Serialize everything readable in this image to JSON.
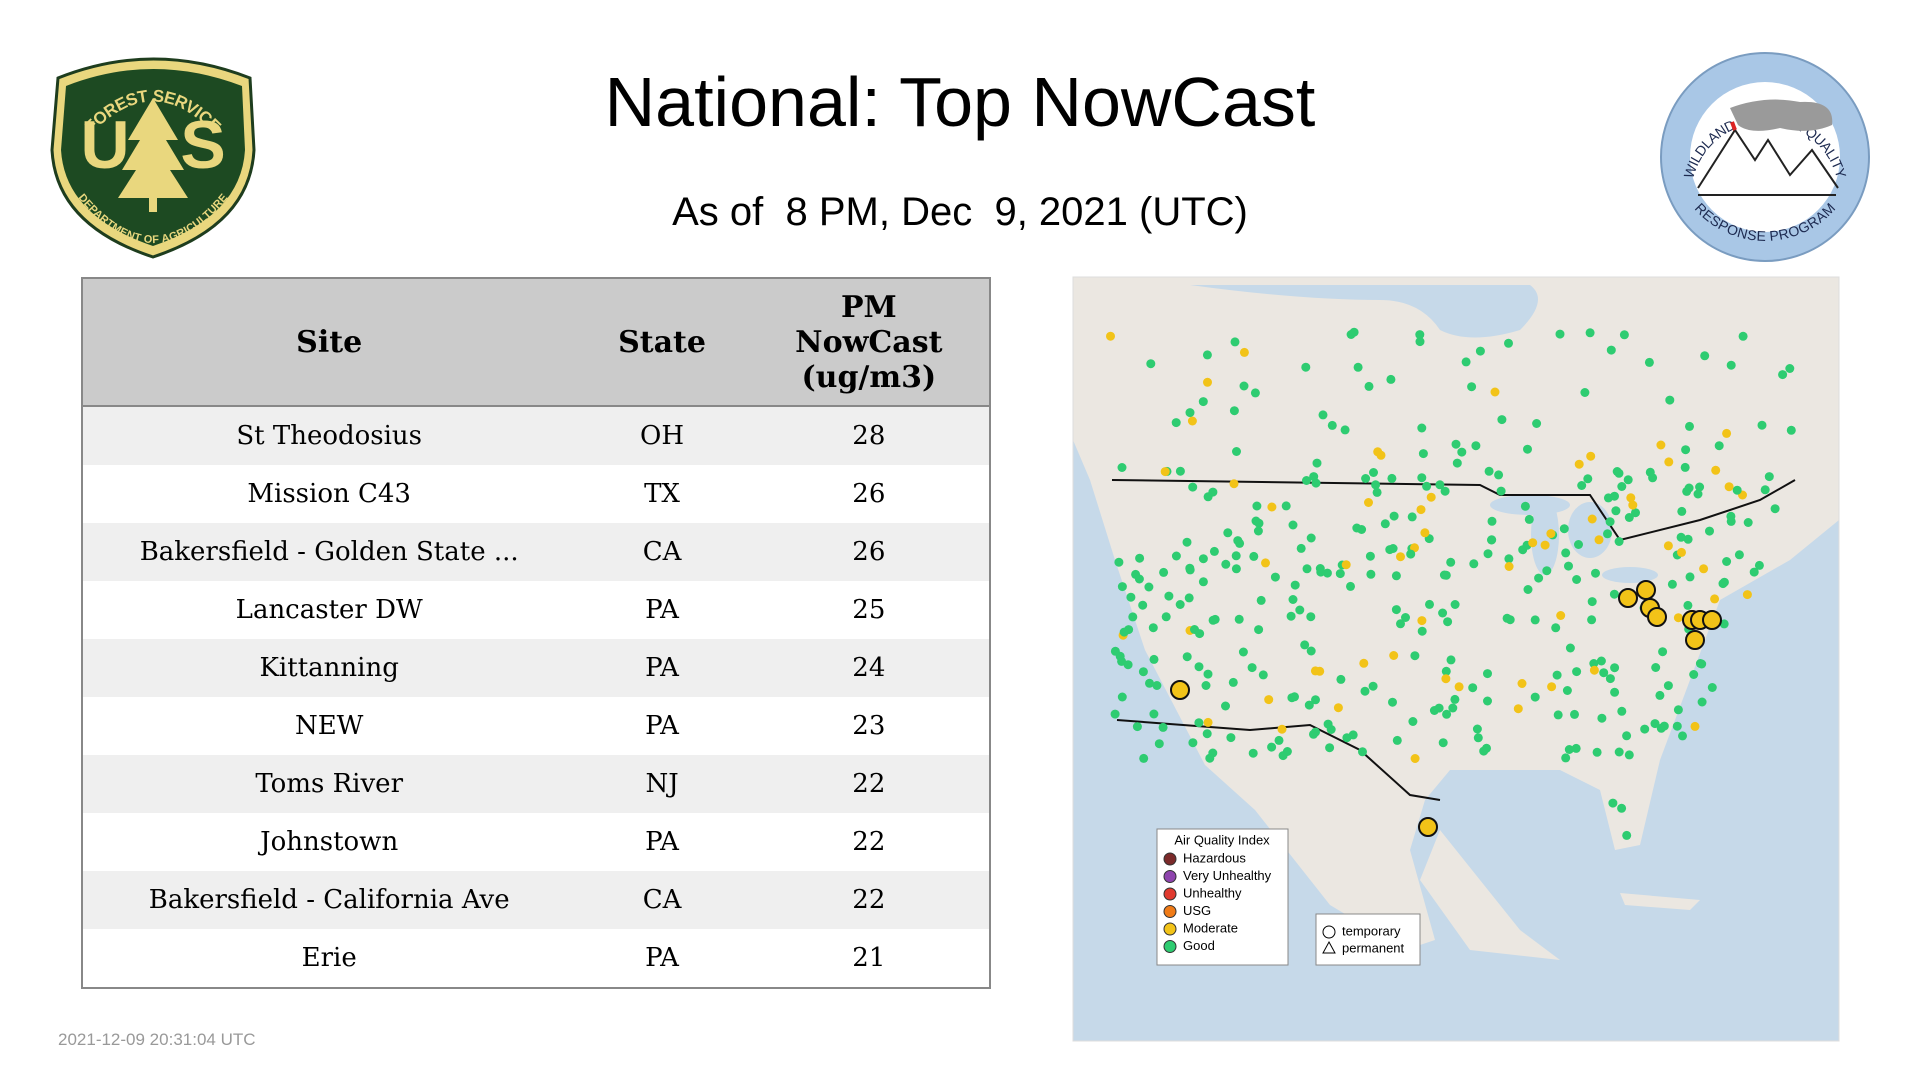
{
  "header": {
    "title": "National: Top NowCast",
    "subtitle": "As of  8 PM, Dec  9, 2021 (UTC)"
  },
  "logos": {
    "left": {
      "top": "FOREST SERVICE",
      "letter_left": "U",
      "letter_right": "S",
      "bottom": "DEPARTMENT OF AGRICULTURE"
    },
    "right": {
      "top": "WILDLAND FIRE • AIR QUALITY",
      "bottom": "RESPONSE PROGRAM"
    }
  },
  "table": {
    "columns": [
      "Site",
      "State",
      "PM NowCast (ug/m3)"
    ],
    "rows": [
      [
        "St Theodosius",
        "OH",
        28
      ],
      [
        "Mission C43",
        "TX",
        26
      ],
      [
        "Bakersfield - Golden State ...",
        "CA",
        26
      ],
      [
        "Lancaster DW",
        "PA",
        25
      ],
      [
        "Kittanning",
        "PA",
        24
      ],
      [
        "NEW",
        "PA",
        23
      ],
      [
        "Toms River",
        "NJ",
        22
      ],
      [
        "Johnstown",
        "PA",
        22
      ],
      [
        "Bakersfield - California Ave",
        "CA",
        22
      ],
      [
        "Erie",
        "PA",
        21
      ]
    ]
  },
  "map": {
    "legend": {
      "title": "Air Quality Index",
      "items": [
        {
          "label": "Hazardous",
          "color": "#7b2a2a"
        },
        {
          "label": "Very Unhealthy",
          "color": "#8e44ad"
        },
        {
          "label": "Unhealthy",
          "color": "#e03a2f"
        },
        {
          "label": "USG",
          "color": "#f07b17"
        },
        {
          "label": "Moderate",
          "color": "#f2c318"
        },
        {
          "label": "Good",
          "color": "#2ecc71"
        }
      ]
    },
    "shape_legend": [
      "temporary",
      "permanent"
    ]
  },
  "footer": {
    "timestamp": "2021-12-09 20:31:04 UTC"
  }
}
